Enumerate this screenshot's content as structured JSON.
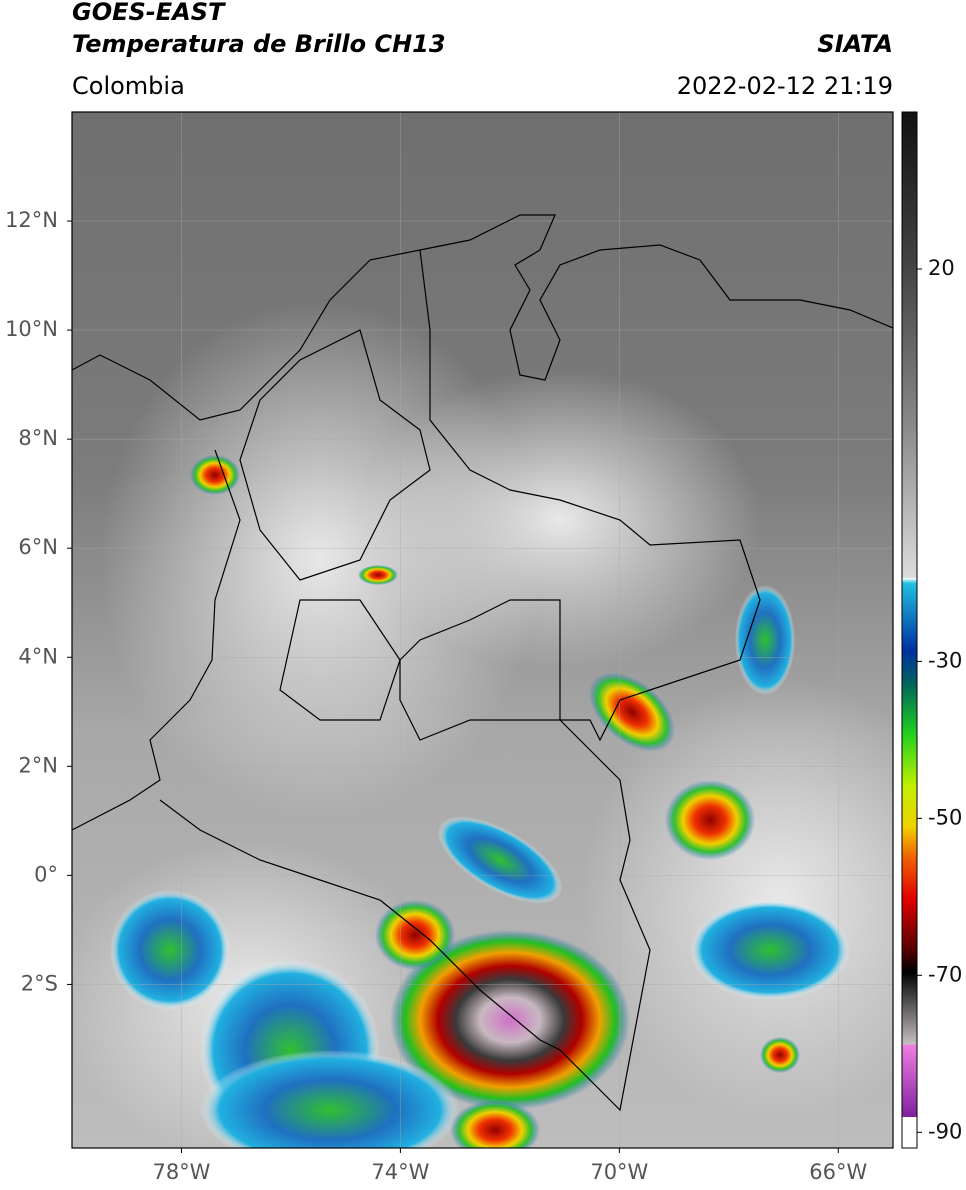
{
  "header": {
    "title": "GOES-EAST",
    "subtitle": "Temperatura de Brillo CH13",
    "source": "SIATA",
    "region": "Colombia",
    "datetime": "2022-02-12 21:19"
  },
  "map": {
    "xlim": [
      -80,
      -65
    ],
    "ylim": [
      -5,
      14
    ],
    "xticks": [
      {
        "value": -78,
        "label": "78°W"
      },
      {
        "value": -74,
        "label": "74°W"
      },
      {
        "value": -70,
        "label": "70°W"
      },
      {
        "value": -66,
        "label": "66°W"
      }
    ],
    "yticks": [
      {
        "value": 12,
        "label": "12°N"
      },
      {
        "value": 10,
        "label": "10°N"
      },
      {
        "value": 8,
        "label": "8°N"
      },
      {
        "value": 6,
        "label": "6°N"
      },
      {
        "value": 4,
        "label": "4°N"
      },
      {
        "value": 2,
        "label": "2°N"
      },
      {
        "value": 0,
        "label": "0°"
      },
      {
        "value": -2,
        "label": "2°S"
      }
    ]
  },
  "colorbar": {
    "lim": [
      40,
      -92
    ],
    "ticks": [
      20,
      -30,
      -50,
      -70,
      -90
    ]
  }
}
